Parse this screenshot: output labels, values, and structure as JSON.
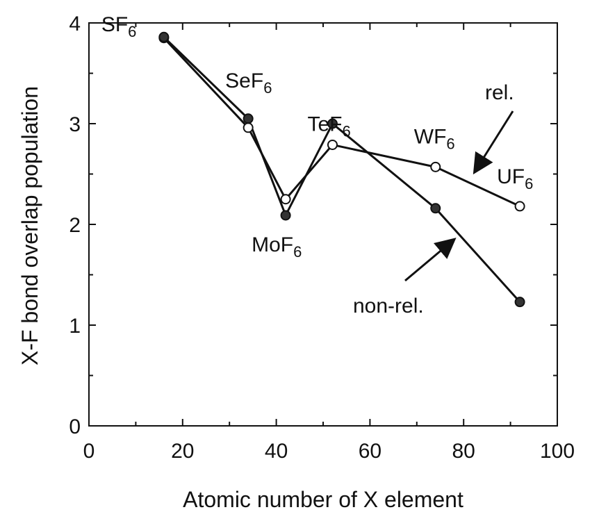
{
  "chart_data": {
    "type": "line",
    "xlabel": "Atomic number of X element",
    "ylabel": "X-F bond overlap population",
    "xlim": [
      0,
      100
    ],
    "ylim": [
      0,
      4
    ],
    "x_ticks": [
      0,
      20,
      40,
      60,
      80,
      100
    ],
    "y_ticks": [
      0,
      1,
      2,
      3,
      4
    ],
    "grid": false,
    "x": [
      16,
      34,
      42,
      52,
      74,
      92
    ],
    "series": [
      {
        "key": "rel",
        "marker": "open-circle",
        "color": "#111111",
        "values": [
          3.85,
          2.96,
          2.25,
          2.79,
          2.57,
          2.18
        ]
      },
      {
        "key": "nonrel",
        "marker": "filled-circle",
        "color": "#111111",
        "values": [
          3.86,
          3.05,
          2.09,
          3.0,
          2.16,
          1.23
        ]
      }
    ],
    "point_labels": [
      {
        "base": "SF",
        "sub": "6"
      },
      {
        "base": "SeF",
        "sub": "6"
      },
      {
        "base": "MoF",
        "sub": "6"
      },
      {
        "base": "TeF",
        "sub": "6"
      },
      {
        "base": "WF",
        "sub": "6"
      },
      {
        "base": "UF",
        "sub": "6"
      }
    ],
    "annotations": [
      {
        "key": "rel",
        "text": "rel."
      },
      {
        "key": "nonrel",
        "text": "non-rel."
      }
    ]
  }
}
